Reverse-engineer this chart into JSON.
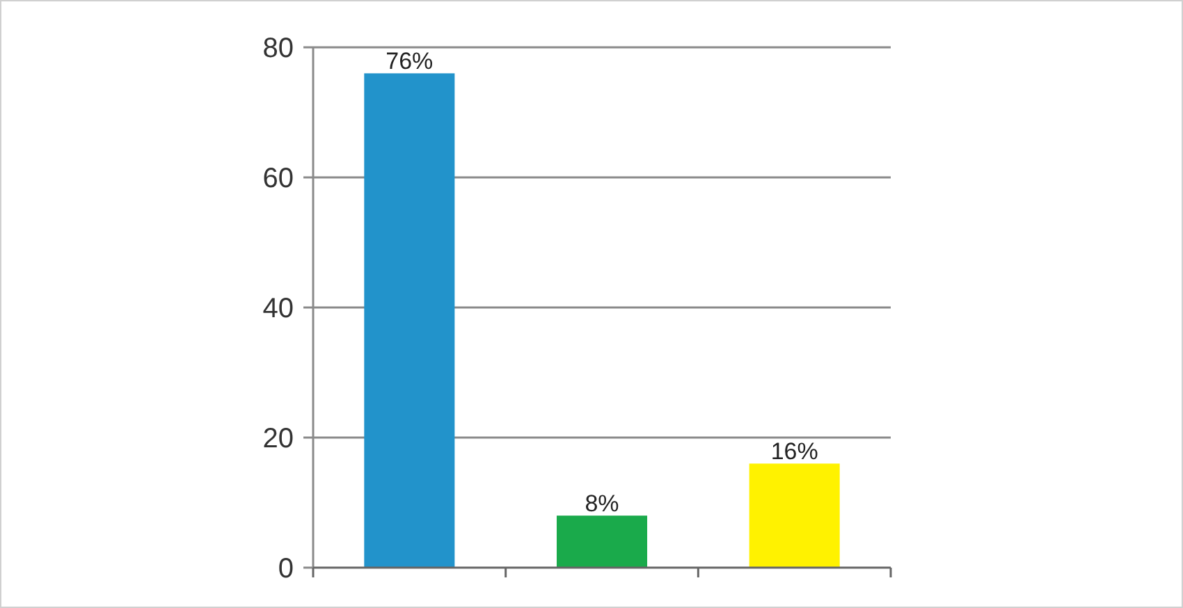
{
  "chart_data": {
    "type": "bar",
    "categories": [
      null,
      null,
      null
    ],
    "values": [
      76,
      8,
      16
    ],
    "colors": [
      "#2293cb",
      "#1aaa4b",
      "#fff200"
    ],
    "value_labels": [
      "76%",
      "8%",
      "16%"
    ],
    "ylim": [
      0,
      80
    ],
    "yticks": [
      0,
      20,
      40,
      60,
      80
    ],
    "grid": "y"
  }
}
